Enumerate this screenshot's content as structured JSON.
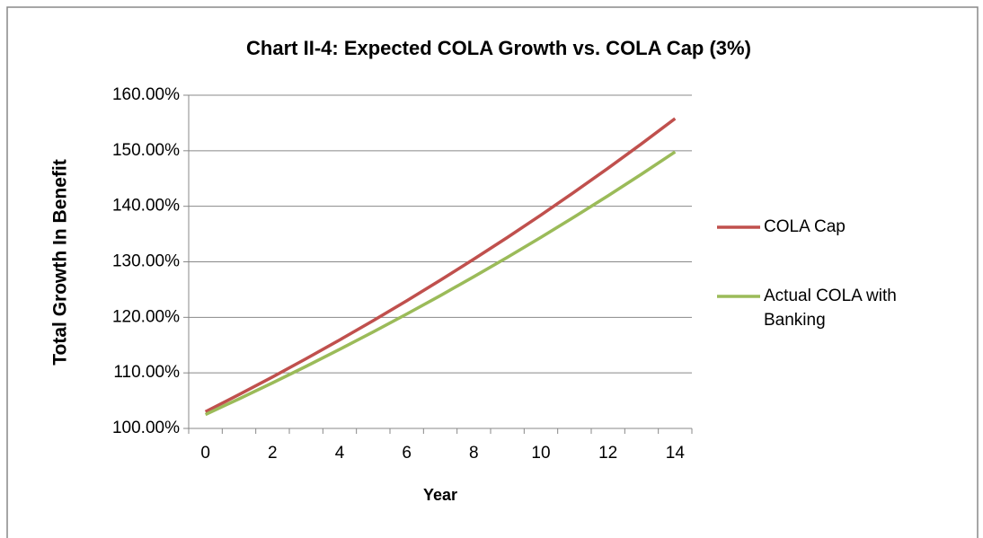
{
  "chart_data": {
    "type": "line",
    "title": "Chart II-4: Expected COLA Growth vs. COLA Cap (3%)",
    "x_label": "Year",
    "y_label": "Total Growth In Benefit",
    "categories": [
      "0",
      null,
      "2",
      null,
      "4",
      null,
      "6",
      null,
      "8",
      null,
      "10",
      null,
      "12",
      null,
      "14"
    ],
    "series": [
      {
        "name": "COLA Cap",
        "color": "#c0504d",
        "values": [
          103.0,
          106.09,
          109.27,
          112.55,
          115.93,
          119.41,
          122.99,
          126.68,
          130.48,
          134.39,
          138.42,
          142.58,
          146.85,
          151.26,
          155.8
        ]
      },
      {
        "name": "Actual COLA with Banking",
        "color": "#9bbb59",
        "values": [
          102.5,
          105.32,
          108.21,
          111.18,
          114.24,
          117.38,
          120.6,
          123.91,
          127.32,
          130.81,
          134.41,
          138.1,
          141.89,
          145.79,
          149.8
        ]
      }
    ],
    "ylim": [
      100,
      160
    ],
    "yticks": [
      {
        "value": 100,
        "label": "100.00%"
      },
      {
        "value": 110,
        "label": "110.00%"
      },
      {
        "value": 120,
        "label": "120.00%"
      },
      {
        "value": 130,
        "label": "130.00%"
      },
      {
        "value": 140,
        "label": "140.00%"
      },
      {
        "value": 150,
        "label": "150.00%"
      },
      {
        "value": 160,
        "label": "160.00%"
      }
    ],
    "grid": true,
    "legend": "right"
  }
}
